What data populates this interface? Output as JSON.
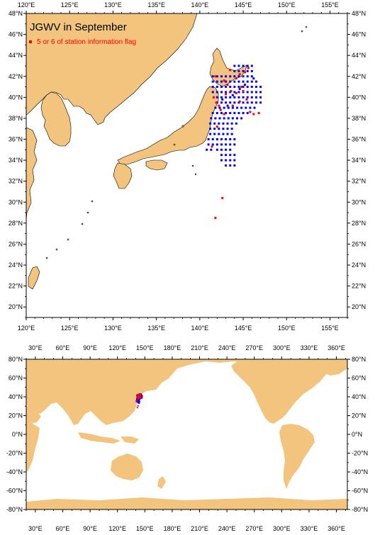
{
  "colors": {
    "land": "#f2c47e",
    "ocean": "#ffffff",
    "normal": "#0000ff",
    "flagged": "#ff0000",
    "frame": "#000000"
  },
  "top_map": {
    "title": "JGWV in September",
    "legend_label": "5 or 6 of station information flag",
    "lon_range": [
      120,
      157
    ],
    "lat_range": [
      19,
      48
    ],
    "lon_ticks": [
      "120°E",
      "125°E",
      "130°E",
      "135°E",
      "140°E",
      "145°E",
      "150°E",
      "155°E"
    ],
    "lat_ticks": [
      "20°N",
      "22°N",
      "24°N",
      "26°N",
      "28°N",
      "30°N",
      "32°N",
      "34°N",
      "36°N",
      "38°N",
      "40°N",
      "42°N",
      "44°N",
      "46°N",
      "48°N"
    ]
  },
  "bottom_map": {
    "lon_range": [
      20,
      372
    ],
    "lat_range": [
      -80,
      80
    ],
    "lon_ticks": [
      "30°E",
      "60°E",
      "90°E",
      "120°E",
      "150°E",
      "180°E",
      "210°E",
      "240°E",
      "270°E",
      "300°E",
      "330°E",
      "360°E"
    ],
    "lat_ticks": [
      "80°N",
      "60°N",
      "40°N",
      "20°N",
      "0°N",
      "-20°N",
      "-40°N",
      "-60°N",
      "-80°N"
    ]
  },
  "stations": {
    "normal": [
      [
        141.5,
        42
      ],
      [
        142,
        42
      ],
      [
        142.5,
        42
      ],
      [
        143,
        42
      ],
      [
        143.5,
        42
      ],
      [
        144,
        42
      ],
      [
        144.5,
        42
      ],
      [
        145,
        42
      ],
      [
        145.5,
        42
      ],
      [
        146,
        42
      ],
      [
        141.5,
        41.5
      ],
      [
        142,
        41.5
      ],
      [
        142.5,
        41.5
      ],
      [
        143,
        41.5
      ],
      [
        143.5,
        41.5
      ],
      [
        144,
        41.5
      ],
      [
        144.5,
        41.5
      ],
      [
        145,
        41.5
      ],
      [
        145.5,
        41.5
      ],
      [
        146,
        41.5
      ],
      [
        146.5,
        41.5
      ],
      [
        141.5,
        41
      ],
      [
        142,
        41
      ],
      [
        142.5,
        41
      ],
      [
        143,
        41
      ],
      [
        143.5,
        41
      ],
      [
        144,
        41
      ],
      [
        144.5,
        41
      ],
      [
        145,
        41
      ],
      [
        145.5,
        41
      ],
      [
        146,
        41
      ],
      [
        146.5,
        41
      ],
      [
        147,
        41
      ],
      [
        141.5,
        40.5
      ],
      [
        142,
        40.5
      ],
      [
        142.5,
        40.5
      ],
      [
        143,
        40.5
      ],
      [
        143.5,
        40.5
      ],
      [
        144,
        40.5
      ],
      [
        144.5,
        40.5
      ],
      [
        145,
        40.5
      ],
      [
        145.5,
        40.5
      ],
      [
        146,
        40.5
      ],
      [
        146.5,
        40.5
      ],
      [
        147,
        40.5
      ],
      [
        142,
        40
      ],
      [
        142.5,
        40
      ],
      [
        143,
        40
      ],
      [
        143.5,
        40
      ],
      [
        144,
        40
      ],
      [
        144.5,
        40
      ],
      [
        145,
        40
      ],
      [
        145.5,
        40
      ],
      [
        146,
        40
      ],
      [
        146.5,
        40
      ],
      [
        147,
        40
      ],
      [
        142,
        39.5
      ],
      [
        142.5,
        39.5
      ],
      [
        143,
        39.5
      ],
      [
        143.5,
        39.5
      ],
      [
        144,
        39.5
      ],
      [
        144.5,
        39.5
      ],
      [
        145,
        39.5
      ],
      [
        145.5,
        39.5
      ],
      [
        146,
        39.5
      ],
      [
        146.5,
        39.5
      ],
      [
        147,
        39.5
      ],
      [
        141.8,
        39
      ],
      [
        142.3,
        39
      ],
      [
        142.8,
        39
      ],
      [
        143.3,
        39
      ],
      [
        143.8,
        39
      ],
      [
        144.3,
        39
      ],
      [
        144.8,
        39
      ],
      [
        145.3,
        39
      ],
      [
        145.8,
        39
      ],
      [
        146.3,
        39
      ],
      [
        141.5,
        38.5
      ],
      [
        142,
        38.5
      ],
      [
        142.5,
        38.5
      ],
      [
        143,
        38.5
      ],
      [
        143.5,
        38.5
      ],
      [
        144,
        38.5
      ],
      [
        144.5,
        38.5
      ],
      [
        145,
        38.5
      ],
      [
        145.5,
        38.5
      ],
      [
        141.3,
        38
      ],
      [
        141.8,
        38
      ],
      [
        142.3,
        38
      ],
      [
        142.8,
        38
      ],
      [
        143.3,
        38
      ],
      [
        143.8,
        38
      ],
      [
        144.3,
        38
      ],
      [
        144.8,
        38
      ],
      [
        141.2,
        37.5
      ],
      [
        141.7,
        37.5
      ],
      [
        142.2,
        37.5
      ],
      [
        142.7,
        37.5
      ],
      [
        143.2,
        37.5
      ],
      [
        143.7,
        37.5
      ],
      [
        144.2,
        37.5
      ],
      [
        141.2,
        37
      ],
      [
        141.7,
        37
      ],
      [
        142.2,
        37
      ],
      [
        142.7,
        37
      ],
      [
        143.2,
        37
      ],
      [
        143.7,
        37
      ],
      [
        141.2,
        36.5
      ],
      [
        141.7,
        36.5
      ],
      [
        142.2,
        36.5
      ],
      [
        142.7,
        36.5
      ],
      [
        143.2,
        36.5
      ],
      [
        143.7,
        36.5
      ],
      [
        141,
        36
      ],
      [
        141.5,
        36
      ],
      [
        142,
        36
      ],
      [
        142.5,
        36
      ],
      [
        143,
        36
      ],
      [
        143.5,
        36
      ],
      [
        144,
        36
      ],
      [
        141,
        35.5
      ],
      [
        141.5,
        35.5
      ],
      [
        142,
        35.5
      ],
      [
        142.5,
        35.5
      ],
      [
        143,
        35.5
      ],
      [
        143.5,
        35.5
      ],
      [
        144,
        35.5
      ],
      [
        140.8,
        35
      ],
      [
        141.3,
        35
      ],
      [
        142,
        35
      ],
      [
        142.5,
        35
      ],
      [
        143,
        35
      ],
      [
        143.5,
        35
      ],
      [
        142.5,
        34.5
      ],
      [
        143,
        34.5
      ],
      [
        143.5,
        34.5
      ],
      [
        144,
        34.5
      ],
      [
        142.5,
        34
      ],
      [
        143,
        34
      ],
      [
        143.5,
        34
      ],
      [
        144,
        34
      ],
      [
        143,
        33.5
      ],
      [
        143.5,
        33.5
      ],
      [
        144,
        33.5
      ],
      [
        144,
        43
      ],
      [
        144.5,
        43
      ],
      [
        145,
        43
      ],
      [
        145.5,
        43
      ],
      [
        146,
        43
      ],
      [
        145.5,
        42.5
      ],
      [
        146,
        42.5
      ],
      [
        144,
        42.5
      ],
      [
        144.5,
        42.5
      ],
      [
        145,
        42.5
      ],
      [
        143.2,
        39.2
      ],
      [
        144.6,
        40.8
      ],
      [
        145.2,
        41.2
      ],
      [
        146.2,
        41.8
      ],
      [
        143.8,
        40.2
      ],
      [
        142.6,
        39.8
      ]
    ],
    "flagged": [
      [
        141.8,
        42
      ],
      [
        142.8,
        41.6
      ],
      [
        144.2,
        41.8
      ],
      [
        145.2,
        42.4
      ],
      [
        145.6,
        42.8
      ],
      [
        143.5,
        42.6
      ],
      [
        144.8,
        41
      ],
      [
        141.6,
        40
      ],
      [
        141.9,
        39.5
      ],
      [
        142.2,
        39.2
      ],
      [
        142.4,
        38.8
      ],
      [
        143,
        40.3
      ],
      [
        143.6,
        40.6
      ],
      [
        144.2,
        40.4
      ],
      [
        145,
        40.6
      ],
      [
        145.4,
        39.8
      ],
      [
        144.6,
        39.6
      ],
      [
        143.8,
        39.2
      ],
      [
        142.8,
        38.4
      ],
      [
        142,
        37.2
      ],
      [
        141.4,
        35.3
      ],
      [
        145.8,
        38.6
      ],
      [
        146.2,
        38.4
      ],
      [
        146.8,
        38.5
      ],
      [
        143.2,
        41.2
      ],
      [
        144.6,
        42.2
      ],
      [
        142.6,
        30.4
      ],
      [
        141.8,
        28.5
      ]
    ]
  }
}
